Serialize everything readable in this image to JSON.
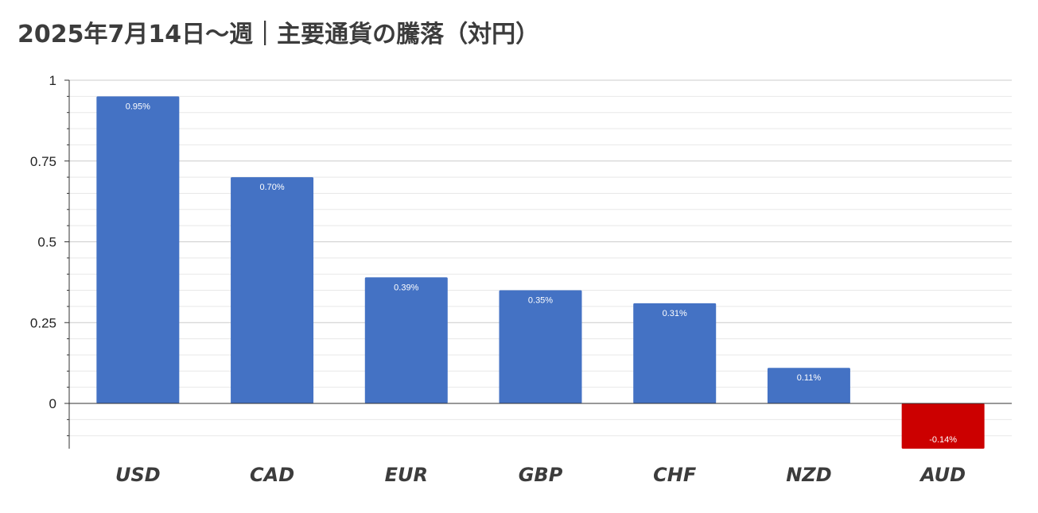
{
  "chart_data": {
    "type": "bar",
    "title": "2025年7月14日～週｜主要通貨の騰落（対円）",
    "categories": [
      "USD",
      "CAD",
      "EUR",
      "GBP",
      "CHF",
      "NZD",
      "AUD"
    ],
    "values": [
      0.95,
      0.7,
      0.39,
      0.35,
      0.31,
      0.11,
      -0.14
    ],
    "data_labels": [
      "0.95%",
      "0.70%",
      "0.39%",
      "0.35%",
      "0.31%",
      "0.11%",
      "-0.14%"
    ],
    "ylim": [
      -0.14,
      1
    ],
    "yticks": [
      0,
      0.25,
      0.5,
      0.75,
      1
    ],
    "ytick_labels": [
      "0",
      "0.25",
      "0.5",
      "0.75",
      "1"
    ],
    "xlabel": "",
    "ylabel": "",
    "grid": true,
    "legend": "none",
    "colors": {
      "positive": "#4472C4",
      "negative": "#CC0000",
      "major_grid": "#cccccc",
      "minor_grid": "#e8e8e8",
      "axis": "#333333"
    }
  }
}
